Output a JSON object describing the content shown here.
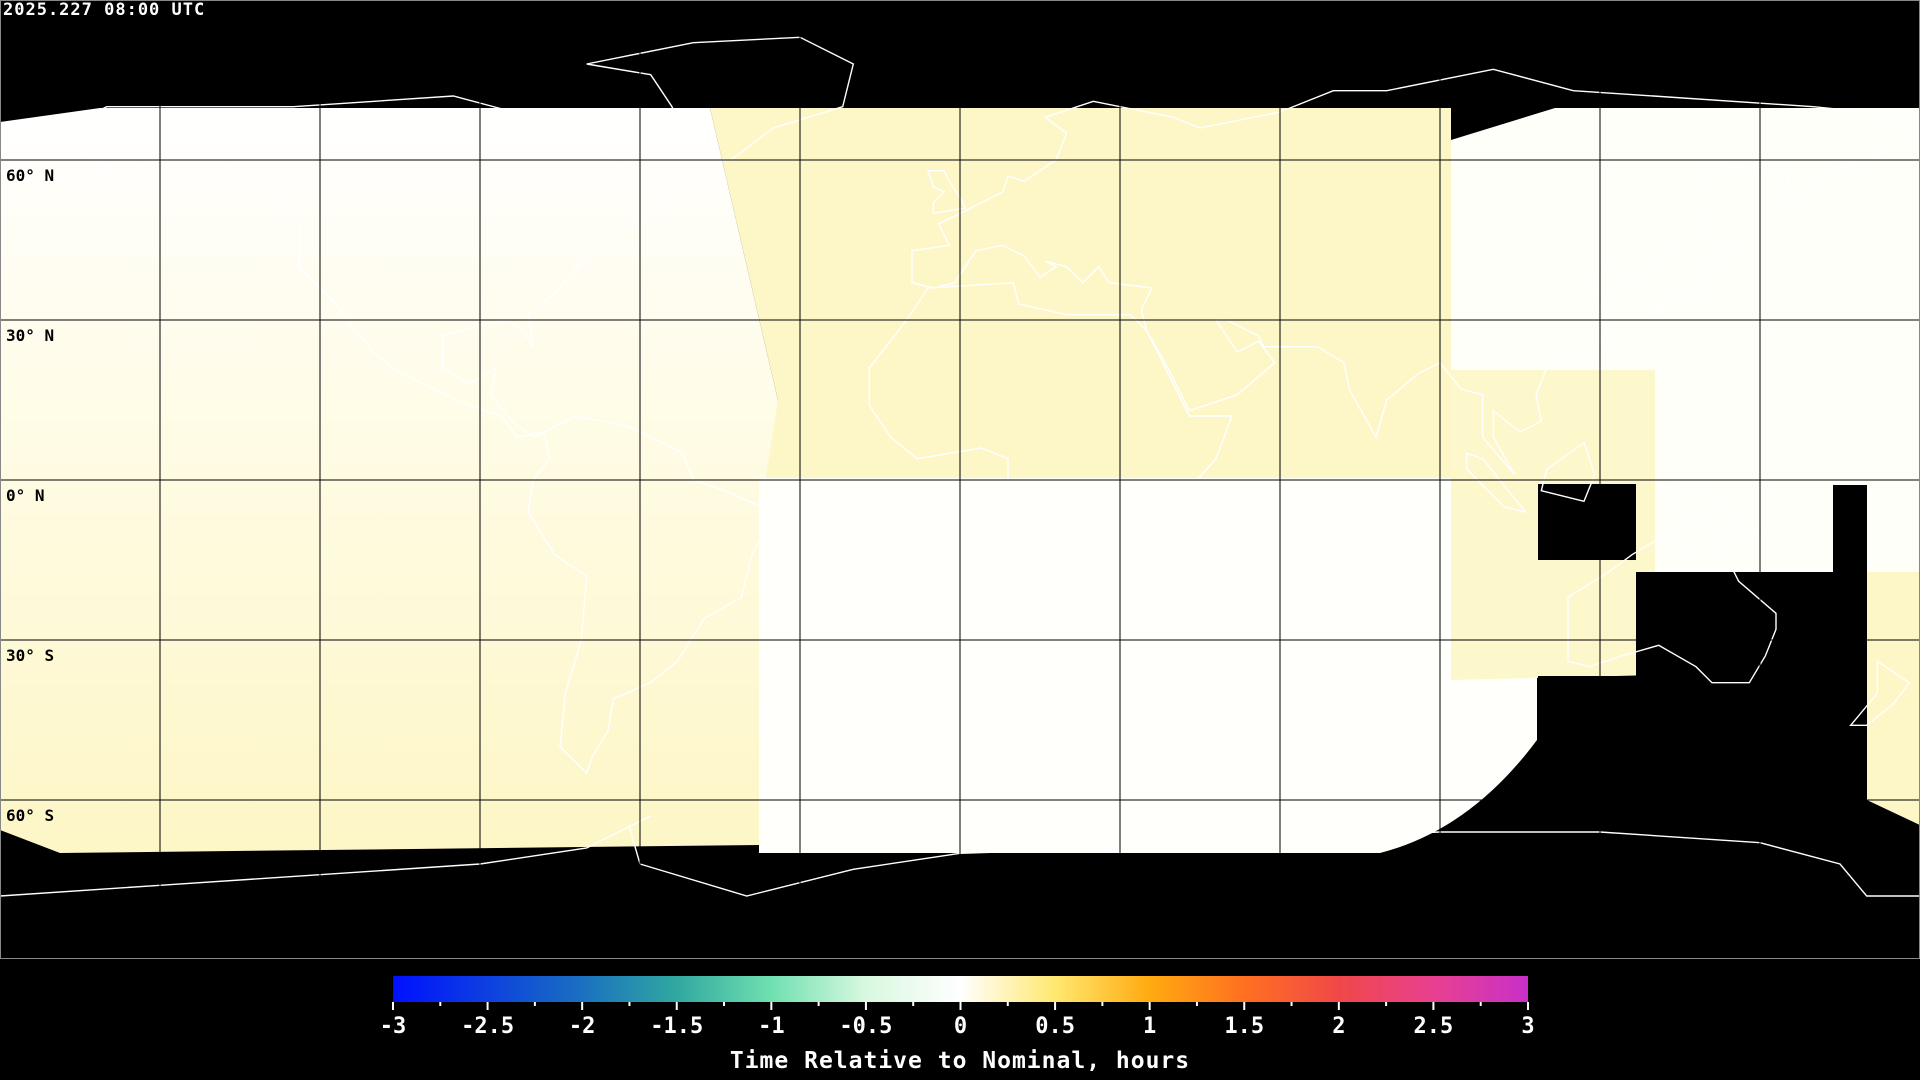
{
  "header": {
    "timestamp": "2025.227 08:00 UTC"
  },
  "map": {
    "projection": "equirectangular",
    "grid": true,
    "grid_spacing_deg": 30,
    "lat_labels": [
      {
        "lat": 60,
        "text": "60° N"
      },
      {
        "lat": 30,
        "text": "30° N"
      },
      {
        "lat": 0,
        "text": "0° N"
      },
      {
        "lat": -30,
        "text": "30° S"
      },
      {
        "lat": -60,
        "text": "60° S"
      }
    ],
    "no_data_color": "#000000",
    "coastline_color": "#000000"
  },
  "colorbar": {
    "min": -3,
    "max": 3,
    "ticks": [
      "-3",
      "-2.5",
      "-2",
      "-1.5",
      "-1",
      "-0.5",
      "0",
      "0.5",
      "1",
      "1.5",
      "2",
      "2.5",
      "3"
    ],
    "label": "Time Relative to Nominal, hours",
    "stops": [
      {
        "value": -3,
        "color": "#0010ff"
      },
      {
        "value": -2,
        "color": "#1a70c0"
      },
      {
        "value": -1.5,
        "color": "#30a8a0"
      },
      {
        "value": -1,
        "color": "#70e0b0"
      },
      {
        "value": -0.5,
        "color": "#d8f8e0"
      },
      {
        "value": 0,
        "color": "#ffffff"
      },
      {
        "value": 0.5,
        "color": "#ffe870"
      },
      {
        "value": 1,
        "color": "#ffaa10"
      },
      {
        "value": 1.5,
        "color": "#ff7020"
      },
      {
        "value": 2,
        "color": "#f04848"
      },
      {
        "value": 2.5,
        "color": "#e84090"
      },
      {
        "value": 3,
        "color": "#c830c8"
      }
    ]
  }
}
